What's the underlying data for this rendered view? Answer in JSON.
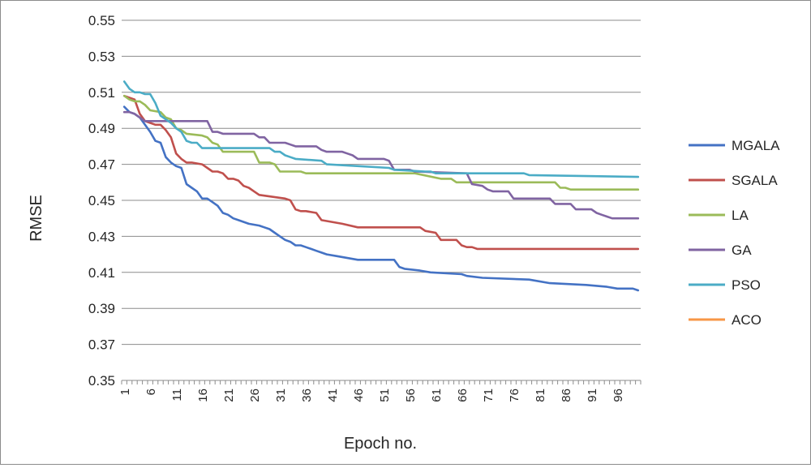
{
  "chart_data": {
    "type": "line",
    "title": "",
    "xlabel": "Epoch no.",
    "ylabel": "RMSE",
    "ylim": [
      0.35,
      0.55
    ],
    "yticks": [
      "0.35",
      "0.37",
      "0.39",
      "0.41",
      "0.43",
      "0.45",
      "0.47",
      "0.49",
      "0.51",
      "0.53",
      "0.55"
    ],
    "xlim": [
      1,
      100
    ],
    "xticks": [
      "1",
      "6",
      "11",
      "16",
      "21",
      "26",
      "31",
      "36",
      "41",
      "46",
      "51",
      "56",
      "61",
      "66",
      "71",
      "76",
      "81",
      "86",
      "91",
      "96"
    ],
    "grid": "horizontal",
    "legend_position": "right",
    "series": [
      {
        "name": "MGALA",
        "color": "#4472c4",
        "points": [
          [
            1,
            0.502
          ],
          [
            2,
            0.499
          ],
          [
            3,
            0.498
          ],
          [
            4,
            0.496
          ],
          [
            5,
            0.492
          ],
          [
            6,
            0.488
          ],
          [
            7,
            0.483
          ],
          [
            8,
            0.482
          ],
          [
            9,
            0.474
          ],
          [
            10,
            0.471
          ],
          [
            11,
            0.469
          ],
          [
            12,
            0.468
          ],
          [
            13,
            0.459
          ],
          [
            14,
            0.457
          ],
          [
            15,
            0.455
          ],
          [
            16,
            0.451
          ],
          [
            17,
            0.451
          ],
          [
            18,
            0.449
          ],
          [
            19,
            0.447
          ],
          [
            20,
            0.443
          ],
          [
            21,
            0.442
          ],
          [
            22,
            0.44
          ],
          [
            23,
            0.439
          ],
          [
            24,
            0.438
          ],
          [
            25,
            0.437
          ],
          [
            27,
            0.436
          ],
          [
            28,
            0.435
          ],
          [
            29,
            0.434
          ],
          [
            30,
            0.432
          ],
          [
            31,
            0.43
          ],
          [
            32,
            0.428
          ],
          [
            33,
            0.427
          ],
          [
            34,
            0.425
          ],
          [
            35,
            0.425
          ],
          [
            36,
            0.424
          ],
          [
            37,
            0.423
          ],
          [
            38,
            0.422
          ],
          [
            39,
            0.421
          ],
          [
            40,
            0.42
          ],
          [
            42,
            0.419
          ],
          [
            46,
            0.417
          ],
          [
            53,
            0.417
          ],
          [
            54,
            0.413
          ],
          [
            55,
            0.412
          ],
          [
            58,
            0.411
          ],
          [
            60,
            0.41
          ],
          [
            66,
            0.409
          ],
          [
            67,
            0.408
          ],
          [
            70,
            0.407
          ],
          [
            79,
            0.406
          ],
          [
            83,
            0.404
          ],
          [
            90,
            0.403
          ],
          [
            94,
            0.402
          ],
          [
            96,
            0.401
          ],
          [
            99,
            0.401
          ],
          [
            100,
            0.4
          ]
        ]
      },
      {
        "name": "SGALA",
        "color": "#c0504d",
        "points": [
          [
            1,
            0.508
          ],
          [
            2,
            0.507
          ],
          [
            3,
            0.506
          ],
          [
            4,
            0.498
          ],
          [
            5,
            0.494
          ],
          [
            6,
            0.493
          ],
          [
            7,
            0.492
          ],
          [
            8,
            0.492
          ],
          [
            9,
            0.489
          ],
          [
            10,
            0.485
          ],
          [
            11,
            0.476
          ],
          [
            12,
            0.473
          ],
          [
            13,
            0.471
          ],
          [
            14,
            0.471
          ],
          [
            16,
            0.47
          ],
          [
            17,
            0.468
          ],
          [
            18,
            0.466
          ],
          [
            19,
            0.466
          ],
          [
            20,
            0.465
          ],
          [
            21,
            0.462
          ],
          [
            22,
            0.462
          ],
          [
            23,
            0.461
          ],
          [
            24,
            0.458
          ],
          [
            25,
            0.457
          ],
          [
            26,
            0.455
          ],
          [
            27,
            0.453
          ],
          [
            32,
            0.451
          ],
          [
            33,
            0.45
          ],
          [
            34,
            0.445
          ],
          [
            35,
            0.444
          ],
          [
            36,
            0.444
          ],
          [
            38,
            0.443
          ],
          [
            39,
            0.439
          ],
          [
            41,
            0.438
          ],
          [
            43,
            0.437
          ],
          [
            46,
            0.435
          ],
          [
            58,
            0.435
          ],
          [
            59,
            0.433
          ],
          [
            61,
            0.432
          ],
          [
            62,
            0.428
          ],
          [
            65,
            0.428
          ],
          [
            66,
            0.425
          ],
          [
            67,
            0.424
          ],
          [
            68,
            0.424
          ],
          [
            69,
            0.423
          ],
          [
            100,
            0.423
          ]
        ]
      },
      {
        "name": "LA",
        "color": "#9bbb59",
        "points": [
          [
            1,
            0.508
          ],
          [
            2,
            0.506
          ],
          [
            3,
            0.505
          ],
          [
            4,
            0.505
          ],
          [
            5,
            0.503
          ],
          [
            6,
            0.5
          ],
          [
            8,
            0.499
          ],
          [
            9,
            0.496
          ],
          [
            10,
            0.495
          ],
          [
            11,
            0.49
          ],
          [
            12,
            0.489
          ],
          [
            13,
            0.487
          ],
          [
            16,
            0.486
          ],
          [
            17,
            0.485
          ],
          [
            18,
            0.482
          ],
          [
            19,
            0.481
          ],
          [
            20,
            0.477
          ],
          [
            26,
            0.477
          ],
          [
            27,
            0.471
          ],
          [
            29,
            0.471
          ],
          [
            30,
            0.47
          ],
          [
            31,
            0.466
          ],
          [
            35,
            0.466
          ],
          [
            36,
            0.465
          ],
          [
            57,
            0.465
          ],
          [
            62,
            0.462
          ],
          [
            64,
            0.462
          ],
          [
            65,
            0.46
          ],
          [
            84,
            0.46
          ],
          [
            85,
            0.457
          ],
          [
            86,
            0.457
          ],
          [
            87,
            0.456
          ],
          [
            100,
            0.456
          ]
        ]
      },
      {
        "name": "GA",
        "color": "#8064a2",
        "points": [
          [
            1,
            0.499
          ],
          [
            2,
            0.499
          ],
          [
            3,
            0.498
          ],
          [
            4,
            0.496
          ],
          [
            5,
            0.494
          ],
          [
            17,
            0.494
          ],
          [
            18,
            0.488
          ],
          [
            19,
            0.488
          ],
          [
            20,
            0.487
          ],
          [
            26,
            0.487
          ],
          [
            27,
            0.485
          ],
          [
            28,
            0.485
          ],
          [
            29,
            0.482
          ],
          [
            32,
            0.482
          ],
          [
            33,
            0.481
          ],
          [
            34,
            0.48
          ],
          [
            38,
            0.48
          ],
          [
            39,
            0.478
          ],
          [
            40,
            0.477
          ],
          [
            43,
            0.477
          ],
          [
            44,
            0.476
          ],
          [
            45,
            0.475
          ],
          [
            46,
            0.473
          ],
          [
            51,
            0.473
          ],
          [
            52,
            0.472
          ],
          [
            53,
            0.467
          ],
          [
            56,
            0.467
          ],
          [
            57,
            0.466
          ],
          [
            67,
            0.465
          ],
          [
            68,
            0.459
          ],
          [
            70,
            0.458
          ],
          [
            71,
            0.456
          ],
          [
            72,
            0.455
          ],
          [
            75,
            0.455
          ],
          [
            76,
            0.451
          ],
          [
            83,
            0.451
          ],
          [
            84,
            0.448
          ],
          [
            87,
            0.448
          ],
          [
            88,
            0.445
          ],
          [
            91,
            0.445
          ],
          [
            92,
            0.443
          ],
          [
            93,
            0.442
          ],
          [
            94,
            0.441
          ],
          [
            95,
            0.44
          ],
          [
            100,
            0.44
          ]
        ]
      },
      {
        "name": "PSO",
        "color": "#4bacc6",
        "points": [
          [
            1,
            0.516
          ],
          [
            2,
            0.512
          ],
          [
            3,
            0.51
          ],
          [
            4,
            0.51
          ],
          [
            5,
            0.509
          ],
          [
            6,
            0.509
          ],
          [
            7,
            0.504
          ],
          [
            8,
            0.497
          ],
          [
            9,
            0.495
          ],
          [
            10,
            0.493
          ],
          [
            11,
            0.49
          ],
          [
            12,
            0.488
          ],
          [
            13,
            0.483
          ],
          [
            14,
            0.482
          ],
          [
            15,
            0.482
          ],
          [
            16,
            0.479
          ],
          [
            29,
            0.479
          ],
          [
            30,
            0.477
          ],
          [
            31,
            0.477
          ],
          [
            32,
            0.475
          ],
          [
            33,
            0.474
          ],
          [
            34,
            0.473
          ],
          [
            39,
            0.472
          ],
          [
            40,
            0.47
          ],
          [
            52,
            0.468
          ],
          [
            53,
            0.467
          ],
          [
            59,
            0.466
          ],
          [
            60,
            0.466
          ],
          [
            61,
            0.465
          ],
          [
            78,
            0.465
          ],
          [
            79,
            0.464
          ],
          [
            100,
            0.463
          ]
        ]
      },
      {
        "name": "ACO",
        "color": "#f79646",
        "points": []
      }
    ]
  }
}
